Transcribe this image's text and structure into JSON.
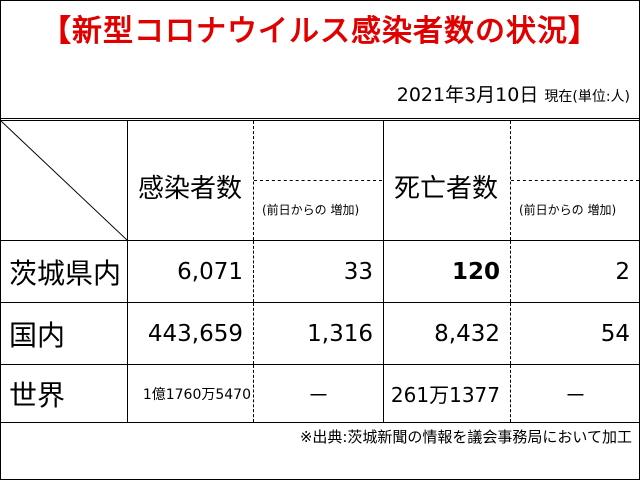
{
  "title": "【新型コロナウイルス感染者数の状況】",
  "date": "2021年3月10日",
  "date_note": "現在(単位:人)",
  "headers": {
    "infected": "感染者数",
    "infected_increase": "(前日からの 増加)",
    "deaths": "死亡者数",
    "deaths_increase": "(前日からの 増加)"
  },
  "rows": [
    {
      "label": "茨城県内",
      "infected": "6,071",
      "infected_increase": "33",
      "deaths": "120",
      "deaths_increase": "2"
    },
    {
      "label": "国内",
      "infected": "443,659",
      "infected_increase": "1,316",
      "deaths": "8,432",
      "deaths_increase": "54"
    },
    {
      "label": "世界",
      "infected": "1億1760万5470",
      "infected_increase": "－",
      "deaths": "261万1377",
      "deaths_increase": "－"
    }
  ],
  "source": "※出典:茨城新聞の情報を議会事務局において加工"
}
